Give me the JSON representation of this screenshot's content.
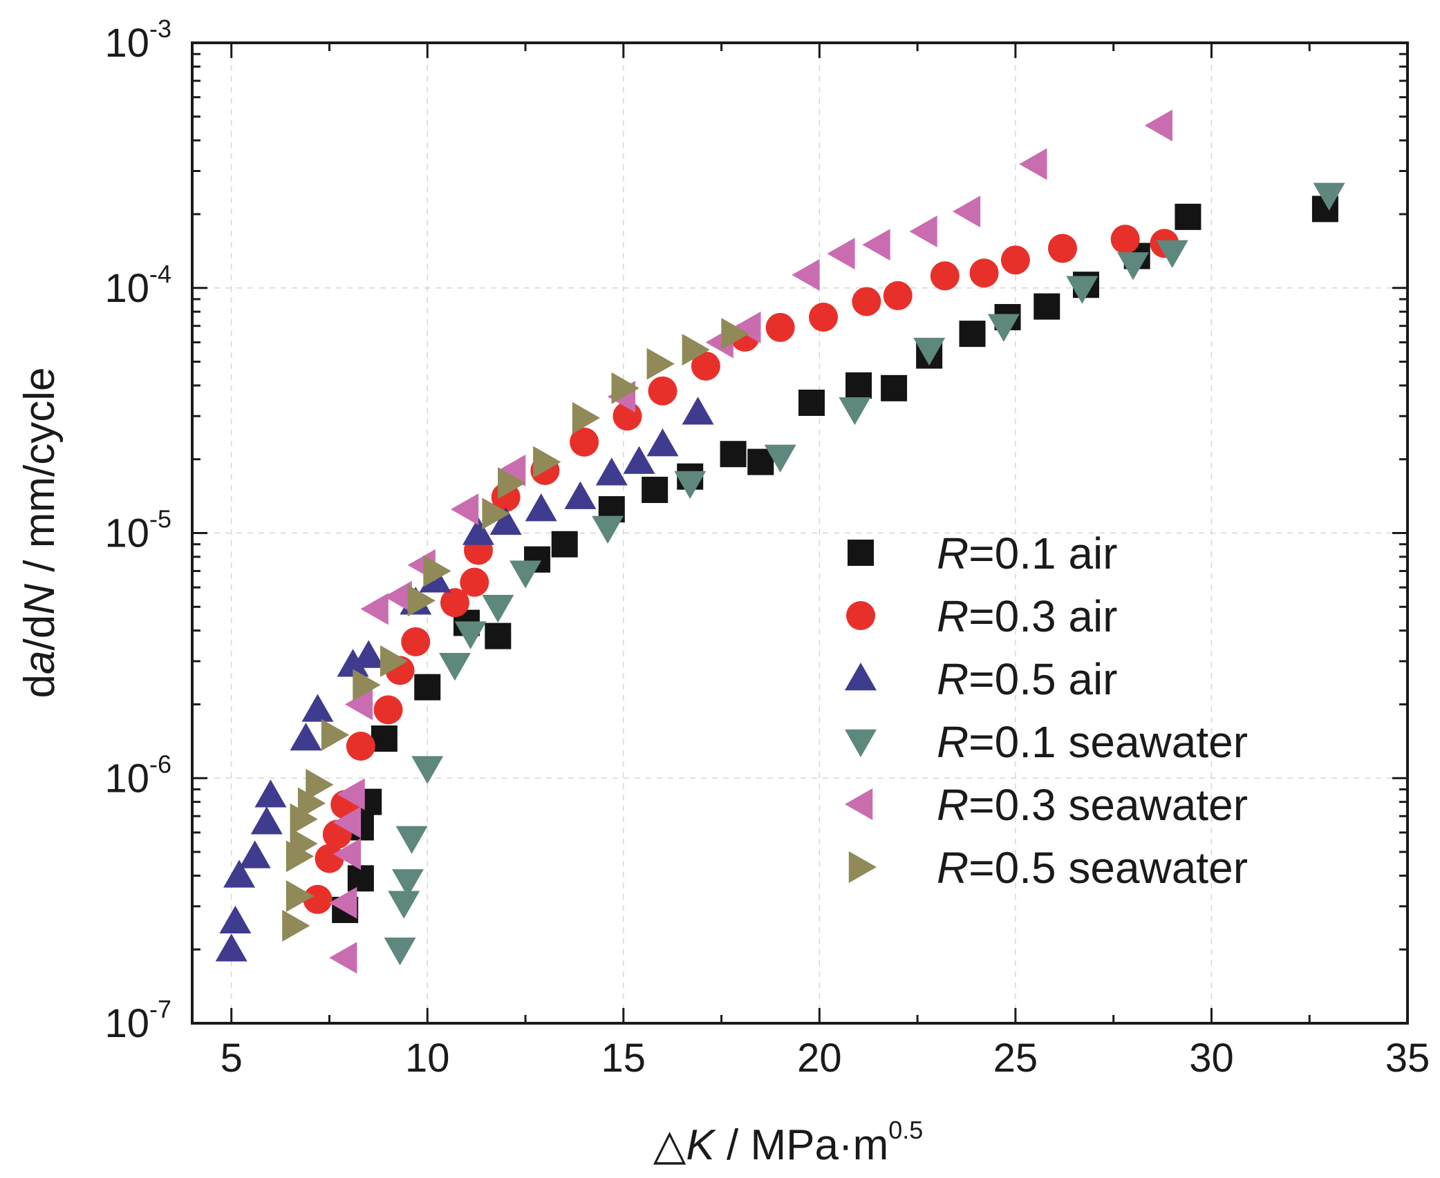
{
  "chart_data": {
    "type": "scatter",
    "title": "",
    "xlabel": {
      "prefix": "△",
      "var": "K",
      "rest": " / MPa·m",
      "sup": "0.5"
    },
    "ylabel": {
      "d1": "d",
      "a": "a",
      "mid": "/d",
      "N": "N",
      "rest": " / mm/cycle"
    },
    "x_scale": "linear",
    "y_scale": "log",
    "xlim": [
      4,
      35
    ],
    "ylim": [
      1e-07,
      0.001
    ],
    "x_ticks": [
      5,
      10,
      15,
      20,
      25,
      30,
      35
    ],
    "x_tick_labels": [
      "5",
      "10",
      "15",
      "20",
      "25",
      "30",
      "35"
    ],
    "y_ticks": [
      1e-07,
      1e-06,
      1e-05,
      0.0001,
      0.001
    ],
    "y_tick_labels": [
      {
        "base": "10",
        "exp": "-7"
      },
      {
        "base": "10",
        "exp": "-6"
      },
      {
        "base": "10",
        "exp": "-5"
      },
      {
        "base": "10",
        "exp": "-4"
      },
      {
        "base": "10",
        "exp": "-3"
      }
    ],
    "grid": true,
    "legend_position": "right",
    "series": [
      {
        "name": "R=0.1 air",
        "r": "R",
        "rest": "=0.1 air",
        "marker": "square",
        "color": "#141414",
        "points": [
          [
            7.9,
            2.9e-07
          ],
          [
            8.3,
            3.9e-07
          ],
          [
            8.3,
            6.3e-07
          ],
          [
            8.5,
            8e-07
          ],
          [
            8.9,
            1.45e-06
          ],
          [
            10.0,
            2.35e-06
          ],
          [
            11.0,
            4.3e-06
          ],
          [
            11.8,
            3.8e-06
          ],
          [
            12.8,
            7.8e-06
          ],
          [
            13.5,
            9e-06
          ],
          [
            14.7,
            1.25e-05
          ],
          [
            15.8,
            1.5e-05
          ],
          [
            16.7,
            1.7e-05
          ],
          [
            17.8,
            2.1e-05
          ],
          [
            18.5,
            1.95e-05
          ],
          [
            19.8,
            3.4e-05
          ],
          [
            21.0,
            4e-05
          ],
          [
            21.9,
            3.9e-05
          ],
          [
            22.8,
            5.3e-05
          ],
          [
            23.9,
            6.5e-05
          ],
          [
            24.8,
            7.6e-05
          ],
          [
            25.8,
            8.4e-05
          ],
          [
            26.8,
            0.000103
          ],
          [
            28.1,
            0.000135
          ],
          [
            29.4,
            0.000195
          ],
          [
            32.9,
            0.00021
          ]
        ]
      },
      {
        "name": "R=0.3 air",
        "r": "R",
        "rest": "=0.3 air",
        "marker": "circle",
        "color": "#e8302a",
        "points": [
          [
            7.2,
            3.2e-07
          ],
          [
            7.5,
            4.7e-07
          ],
          [
            7.7,
            5.9e-07
          ],
          [
            7.9,
            7.8e-07
          ],
          [
            8.3,
            1.35e-06
          ],
          [
            9.0,
            1.9e-06
          ],
          [
            9.3,
            2.75e-06
          ],
          [
            9.7,
            3.6e-06
          ],
          [
            10.7,
            5.2e-06
          ],
          [
            11.2,
            6.3e-06
          ],
          [
            11.3,
            8.5e-06
          ],
          [
            12.0,
            1.4e-05
          ],
          [
            13.0,
            1.8e-05
          ],
          [
            14.0,
            2.35e-05
          ],
          [
            15.1,
            3e-05
          ],
          [
            16.0,
            3.8e-05
          ],
          [
            17.1,
            4.8e-05
          ],
          [
            18.1,
            6.3e-05
          ],
          [
            19.0,
            6.9e-05
          ],
          [
            20.1,
            7.6e-05
          ],
          [
            21.2,
            8.8e-05
          ],
          [
            22.0,
            9.3e-05
          ],
          [
            23.2,
            0.000112
          ],
          [
            24.2,
            0.000115
          ],
          [
            25.0,
            0.00013
          ],
          [
            26.2,
            0.000145
          ],
          [
            27.8,
            0.000158
          ],
          [
            28.8,
            0.000152
          ]
        ]
      },
      {
        "name": "R=0.5 air",
        "r": "R",
        "rest": "=0.5 air",
        "marker": "triangle-up",
        "color": "#3f3b8e",
        "points": [
          [
            5.0,
            2e-07
          ],
          [
            5.1,
            2.6e-07
          ],
          [
            5.2,
            4e-07
          ],
          [
            5.6,
            4.8e-07
          ],
          [
            5.9,
            6.6e-07
          ],
          [
            6.0,
            8.5e-07
          ],
          [
            6.9,
            1.45e-06
          ],
          [
            7.2,
            1.9e-06
          ],
          [
            8.1,
            2.9e-06
          ],
          [
            8.5,
            3.15e-06
          ],
          [
            9.7,
            5.2e-06
          ],
          [
            10.2,
            6.4e-06
          ],
          [
            11.3,
            1e-05
          ],
          [
            12.0,
            1.1e-05
          ],
          [
            12.9,
            1.25e-05
          ],
          [
            13.9,
            1.4e-05
          ],
          [
            14.7,
            1.75e-05
          ],
          [
            15.4,
            1.95e-05
          ],
          [
            16.0,
            2.3e-05
          ],
          [
            16.9,
            3.1e-05
          ]
        ]
      },
      {
        "name": "R=0.1 seawater",
        "r": "R",
        "rest": "=0.1 seawater",
        "marker": "triangle-down",
        "color": "#5e877d",
        "points": [
          [
            9.3,
            2e-07
          ],
          [
            9.4,
            3.1e-07
          ],
          [
            9.5,
            3.8e-07
          ],
          [
            9.6,
            5.7e-07
          ],
          [
            10.0,
            1.1e-06
          ],
          [
            10.7,
            2.9e-06
          ],
          [
            11.1,
            3.9e-06
          ],
          [
            11.8,
            5e-06
          ],
          [
            12.5,
            6.9e-06
          ],
          [
            14.6,
            1.05e-05
          ],
          [
            16.7,
            1.6e-05
          ],
          [
            19.0,
            2.05e-05
          ],
          [
            20.9,
            3.2e-05
          ],
          [
            22.8,
            5.6e-05
          ],
          [
            24.7,
            7e-05
          ],
          [
            26.7,
            0.0001
          ],
          [
            28.0,
            0.000125
          ],
          [
            29.0,
            0.00014
          ],
          [
            33.0,
            0.00024
          ]
        ]
      },
      {
        "name": "R=0.3 seawater",
        "r": "R",
        "rest": "=0.3 seawater",
        "marker": "triangle-left",
        "color": "#c96db0",
        "points": [
          [
            7.9,
            1.85e-07
          ],
          [
            7.9,
            3.1e-07
          ],
          [
            8.0,
            4.9e-07
          ],
          [
            8.0,
            6.6e-07
          ],
          [
            8.1,
            8.6e-07
          ],
          [
            8.3,
            2e-06
          ],
          [
            8.7,
            4.9e-06
          ],
          [
            9.3,
            5.5e-06
          ],
          [
            9.9,
            7.4e-06
          ],
          [
            11.0,
            1.25e-05
          ],
          [
            12.2,
            1.8e-05
          ],
          [
            15.0,
            3.6e-05
          ],
          [
            17.5,
            6e-05
          ],
          [
            18.2,
            6.9e-05
          ],
          [
            19.7,
            0.000113
          ],
          [
            20.6,
            0.000138
          ],
          [
            21.5,
            0.00015
          ],
          [
            22.7,
            0.00017
          ],
          [
            23.8,
            0.000205
          ],
          [
            25.5,
            0.00032
          ],
          [
            28.7,
            0.00046
          ]
        ]
      },
      {
        "name": "R=0.5 seawater",
        "r": "R",
        "rest": "=0.5 seawater",
        "marker": "triangle-right",
        "color": "#8f8a58",
        "points": [
          [
            6.6,
            2.5e-07
          ],
          [
            6.7,
            3.3e-07
          ],
          [
            6.7,
            4.8e-07
          ],
          [
            6.8,
            5.4e-07
          ],
          [
            6.8,
            6.8e-07
          ],
          [
            7.0,
            7.9e-07
          ],
          [
            7.2,
            9.4e-07
          ],
          [
            7.6,
            1.5e-06
          ],
          [
            8.4,
            2.4e-06
          ],
          [
            9.1,
            3e-06
          ],
          [
            9.8,
            5.3e-06
          ],
          [
            10.2,
            7e-06
          ],
          [
            11.7,
            1.2e-05
          ],
          [
            12.1,
            1.6e-05
          ],
          [
            13.0,
            1.95e-05
          ],
          [
            14.0,
            2.95e-05
          ],
          [
            15.0,
            3.9e-05
          ],
          [
            15.9,
            4.9e-05
          ],
          [
            16.8,
            5.6e-05
          ],
          [
            17.8,
            6.5e-05
          ]
        ]
      }
    ]
  }
}
